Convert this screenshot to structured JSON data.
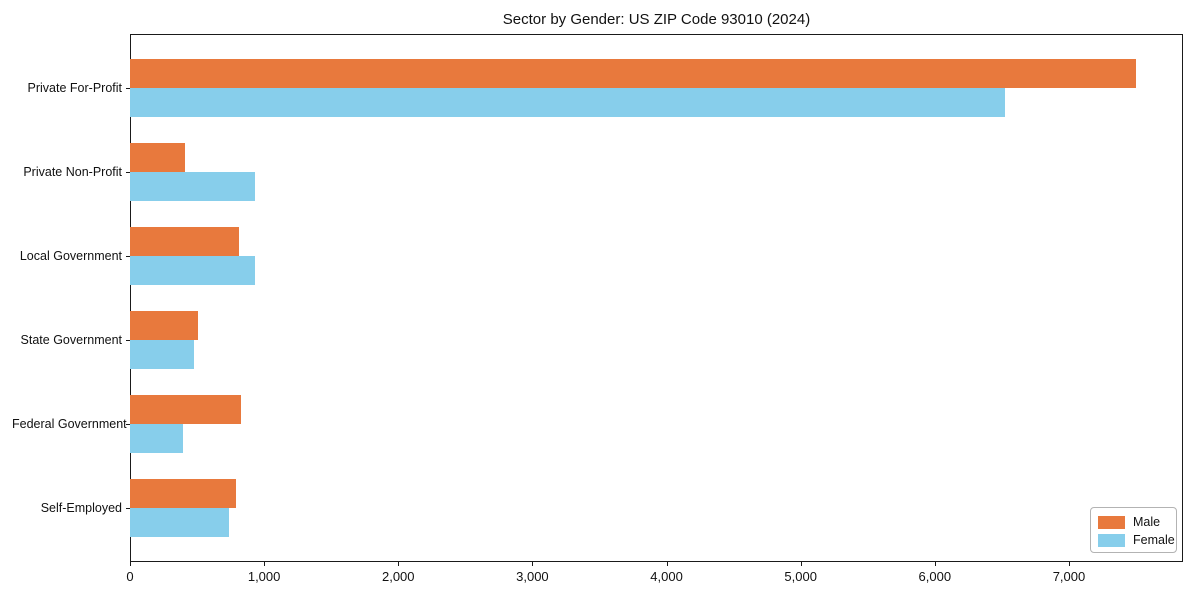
{
  "chart_data": {
    "type": "bar",
    "orientation": "horizontal",
    "title": "Sector by Gender: US ZIP Code 93010 (2024)",
    "categories": [
      "Private For-Profit",
      "Private Non-Profit",
      "Local Government",
      "State Government",
      "Federal Government",
      "Self-Employed"
    ],
    "series": [
      {
        "name": "Male",
        "color": "#e8793d",
        "values": [
          7500,
          410,
          810,
          505,
          825,
          790
        ]
      },
      {
        "name": "Female",
        "color": "#87ceeb",
        "values": [
          6520,
          930,
          930,
          475,
          395,
          740
        ]
      }
    ],
    "xlabel": "",
    "ylabel": "",
    "xlim": [
      0,
      7850
    ],
    "x_ticks": [
      0,
      1000,
      2000,
      3000,
      4000,
      5000,
      6000,
      7000
    ],
    "x_tick_labels": [
      "0",
      "1,000",
      "2,000",
      "3,000",
      "4,000",
      "5,000",
      "6,000",
      "7,000"
    ],
    "grid": false,
    "legend_position": "lower right",
    "frame_color": "#1a1a1a",
    "background_color": "#ffffff"
  }
}
